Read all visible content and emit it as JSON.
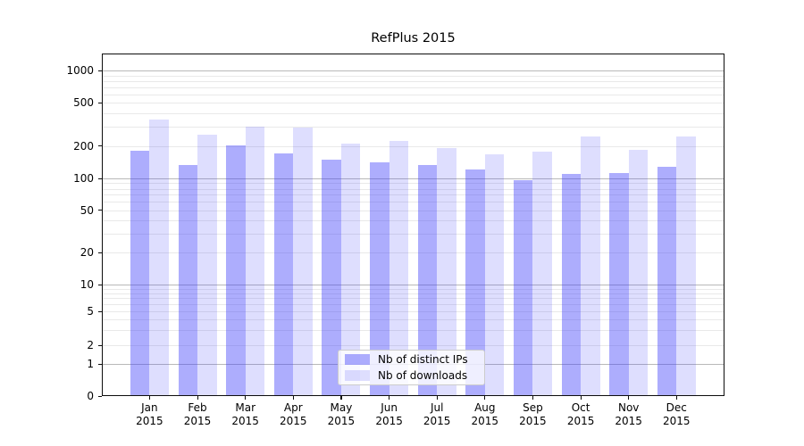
{
  "chart_data": {
    "type": "bar",
    "title": "RefPlus 2015",
    "categories": [
      "Jan 2015",
      "Feb 2015",
      "Mar 2015",
      "Apr 2015",
      "May 2015",
      "Jun 2015",
      "Jul 2015",
      "Aug 2015",
      "Sep 2015",
      "Oct 2015",
      "Nov 2015",
      "Dec 2015"
    ],
    "series": [
      {
        "name": "Nb of distinct IPs",
        "color": "rgba(60,60,250,0.42)",
        "values": [
          180,
          134,
          201,
          169,
          149,
          141,
          133,
          121,
          96,
          111,
          112,
          129
        ]
      },
      {
        "name": "Nb of downloads",
        "color": "rgba(60,60,250,0.17)",
        "values": [
          352,
          256,
          301,
          296,
          209,
          222,
          191,
          168,
          176,
          247,
          183,
          247
        ]
      }
    ],
    "y_axis": {
      "scale": "symlog",
      "tick_labels": [
        "0",
        "1",
        "2",
        "5",
        "10",
        "20",
        "50",
        "100",
        "200",
        "500",
        "1000"
      ],
      "tick_values": [
        0,
        1,
        2,
        5,
        10,
        20,
        50,
        100,
        200,
        500,
        1000
      ],
      "range_top": 1440
    },
    "grid": "on",
    "legend_position": "lower center",
    "colors": {
      "major_grid": "#b9b9b9",
      "minor_grid": "#e9e9e9",
      "spine": "#0d0d0d",
      "background": "#ffffff"
    }
  }
}
